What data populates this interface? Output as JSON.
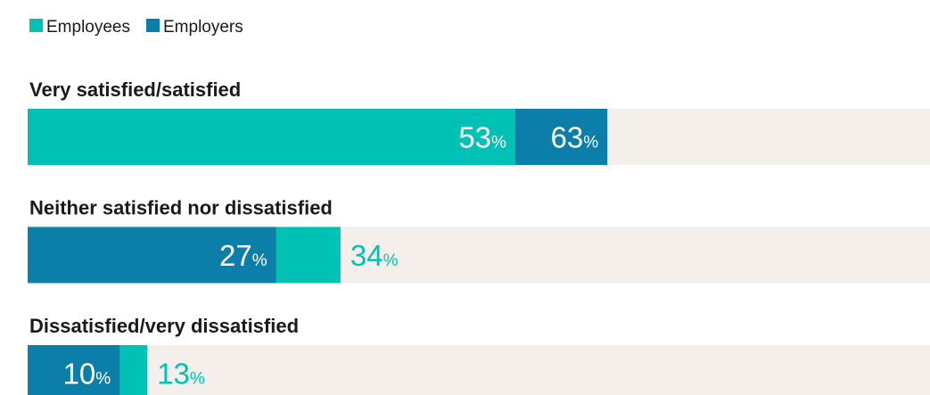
{
  "chart_data": {
    "type": "overlap-bar",
    "categories": [
      "Very satisfied/satisfied",
      "Neither satisfied nor dissatisfied",
      "Dissatisfied/very dissatisfied"
    ],
    "series": [
      {
        "name": "Employees",
        "color": "#00c1b4",
        "values": [
          53,
          34,
          13
        ],
        "value_labels": [
          "53%",
          "34%",
          "13%"
        ]
      },
      {
        "name": "Employers",
        "color": "#0b7fa9",
        "values": [
          63,
          27,
          10
        ],
        "value_labels": [
          "63%",
          "27%",
          "10%"
        ]
      }
    ],
    "xlim": [
      0,
      100
    ],
    "track_color": "#f4efeb"
  }
}
